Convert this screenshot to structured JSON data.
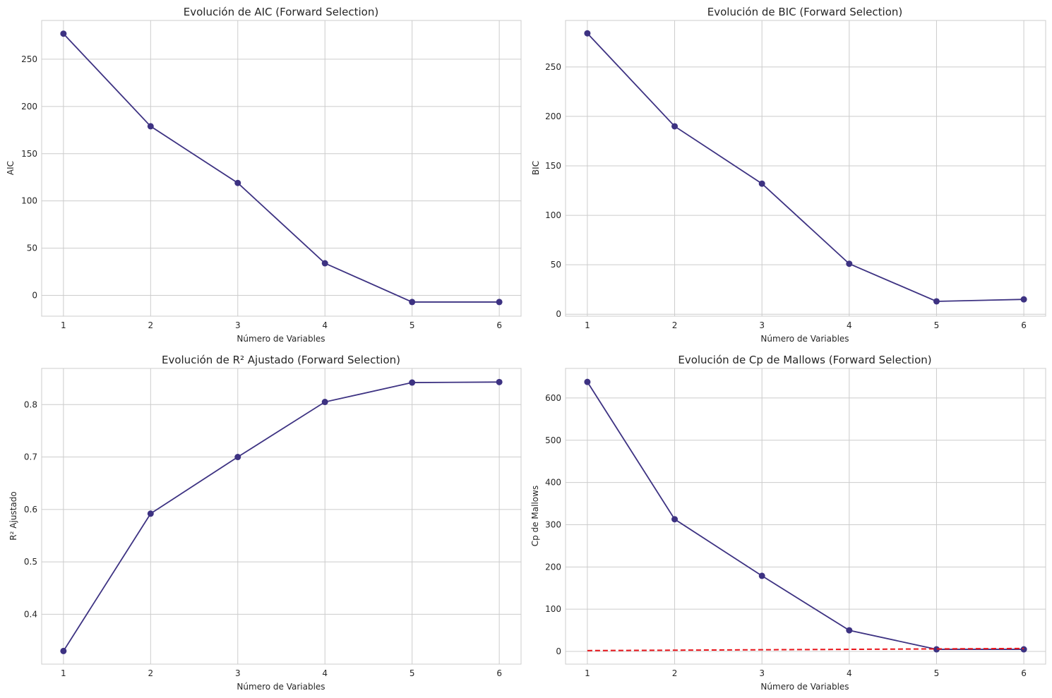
{
  "chart_data": [
    {
      "type": "line",
      "title": "Evolución de AIC (Forward Selection)",
      "xlabel": "Número de Variables",
      "ylabel": "AIC",
      "x": [
        1,
        2,
        3,
        4,
        5,
        6
      ],
      "series": [
        {
          "values": [
            277,
            179,
            119,
            34,
            -7,
            -7
          ]
        }
      ],
      "xticks": [
        "1",
        "2",
        "3",
        "4",
        "5",
        "6"
      ],
      "yticks": [
        0,
        50,
        100,
        150,
        200,
        250
      ],
      "xlim": [
        0.75,
        6.25
      ],
      "ylim": [
        -22,
        291
      ],
      "grid": true,
      "line_color": "#3d3282"
    },
    {
      "type": "line",
      "title": "Evolución de BIC (Forward Selection)",
      "xlabel": "Número de Variables",
      "ylabel": "BIC",
      "x": [
        1,
        2,
        3,
        4,
        5,
        6
      ],
      "series": [
        {
          "values": [
            284,
            190,
            132,
            51,
            13,
            15
          ]
        }
      ],
      "xticks": [
        "1",
        "2",
        "3",
        "4",
        "5",
        "6"
      ],
      "yticks": [
        0,
        50,
        100,
        150,
        200,
        250
      ],
      "xlim": [
        0.75,
        6.25
      ],
      "ylim": [
        -2,
        297
      ],
      "grid": true,
      "line_color": "#3d3282"
    },
    {
      "type": "line",
      "title": "Evolución de R² Ajustado (Forward Selection)",
      "xlabel": "Número de Variables",
      "ylabel": "R² Ajustado",
      "x": [
        1,
        2,
        3,
        4,
        5,
        6
      ],
      "series": [
        {
          "values": [
            0.33,
            0.592,
            0.7,
            0.805,
            0.842,
            0.843
          ]
        }
      ],
      "xticks": [
        "1",
        "2",
        "3",
        "4",
        "5",
        "6"
      ],
      "yticks": [
        0.4,
        0.5,
        0.6,
        0.7,
        0.8
      ],
      "xlim": [
        0.75,
        6.25
      ],
      "ylim": [
        0.305,
        0.869
      ],
      "grid": true,
      "line_color": "#3d3282"
    },
    {
      "type": "line",
      "title": "Evolución de Cp de Mallows (Forward Selection)",
      "xlabel": "Número de Variables",
      "ylabel": "Cp de Mallows",
      "x": [
        1,
        2,
        3,
        4,
        5,
        6
      ],
      "series": [
        {
          "values": [
            638,
            313,
            179,
            50,
            5,
            5
          ]
        },
        {
          "values": [
            2,
            3,
            4,
            5,
            6,
            7
          ],
          "style": "dashed",
          "color": "#e8141a"
        }
      ],
      "xticks": [
        "1",
        "2",
        "3",
        "4",
        "5",
        "6"
      ],
      "yticks": [
        0,
        100,
        200,
        300,
        400,
        500,
        600
      ],
      "xlim": [
        0.75,
        6.25
      ],
      "ylim": [
        -30,
        670
      ],
      "grid": true,
      "line_color": "#3d3282"
    }
  ]
}
